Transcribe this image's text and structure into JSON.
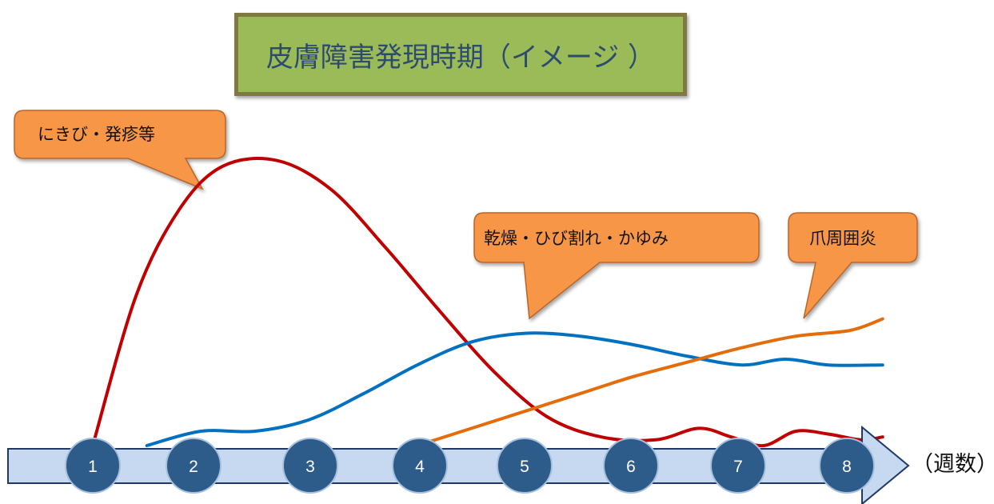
{
  "chart_data": {
    "type": "line",
    "title": "皮膚障害発現時期（イメージ ）",
    "xlabel": "（週数）",
    "x": [
      1,
      2,
      3,
      4,
      5,
      6,
      7,
      8
    ],
    "series": [
      {
        "name": "にきび・発疹等",
        "color": "#c00000",
        "points": [
          [
            1.0,
            0.0
          ],
          [
            1.4,
            0.52
          ],
          [
            1.8,
            0.82
          ],
          [
            2.2,
            0.97
          ],
          [
            2.7,
            0.99
          ],
          [
            3.2,
            0.89
          ],
          [
            3.7,
            0.69
          ],
          [
            4.2,
            0.47
          ],
          [
            4.7,
            0.26
          ],
          [
            5.2,
            0.1
          ],
          [
            5.7,
            0.03
          ],
          [
            6.2,
            0.02
          ],
          [
            6.6,
            0.06
          ],
          [
            6.9,
            0.03
          ],
          [
            7.2,
            0.0
          ],
          [
            7.5,
            0.05
          ],
          [
            7.8,
            0.04
          ],
          [
            8.1,
            0.02
          ],
          [
            8.3,
            0.03
          ]
        ]
      },
      {
        "name": "乾燥・ひび割れ・かゆみ",
        "color": "#0070c0",
        "points": [
          [
            1.5,
            0.0
          ],
          [
            2.0,
            0.05
          ],
          [
            2.5,
            0.05
          ],
          [
            3.0,
            0.09
          ],
          [
            3.5,
            0.18
          ],
          [
            4.0,
            0.28
          ],
          [
            4.5,
            0.36
          ],
          [
            5.0,
            0.39
          ],
          [
            5.5,
            0.38
          ],
          [
            6.0,
            0.35
          ],
          [
            6.5,
            0.31
          ],
          [
            7.0,
            0.28
          ],
          [
            7.4,
            0.3
          ],
          [
            7.8,
            0.28
          ],
          [
            8.3,
            0.28
          ]
        ]
      },
      {
        "name": "爪周囲炎",
        "color": "#e46c0a",
        "points": [
          [
            4.0,
            0.0
          ],
          [
            4.5,
            0.06
          ],
          [
            5.0,
            0.12
          ],
          [
            5.5,
            0.18
          ],
          [
            6.0,
            0.24
          ],
          [
            6.5,
            0.29
          ],
          [
            7.0,
            0.34
          ],
          [
            7.5,
            0.38
          ],
          [
            8.0,
            0.4
          ],
          [
            8.3,
            0.44
          ]
        ]
      }
    ],
    "callouts": [
      "にきび・発疹等",
      "乾燥・ひび割れ・かゆみ",
      "爪周囲炎"
    ],
    "colors": {
      "title_bg": "#9bbb59",
      "title_border": "#7f7a42",
      "title_text": "#2c4b6e",
      "callout_bg": "#f79646",
      "callout_border": "#b9652a",
      "axis_fill": "#c6d9f1",
      "axis_stroke": "#1f3864",
      "circle_fill": "#2e5c8a",
      "circle_stroke": "#a6c0dd"
    }
  }
}
